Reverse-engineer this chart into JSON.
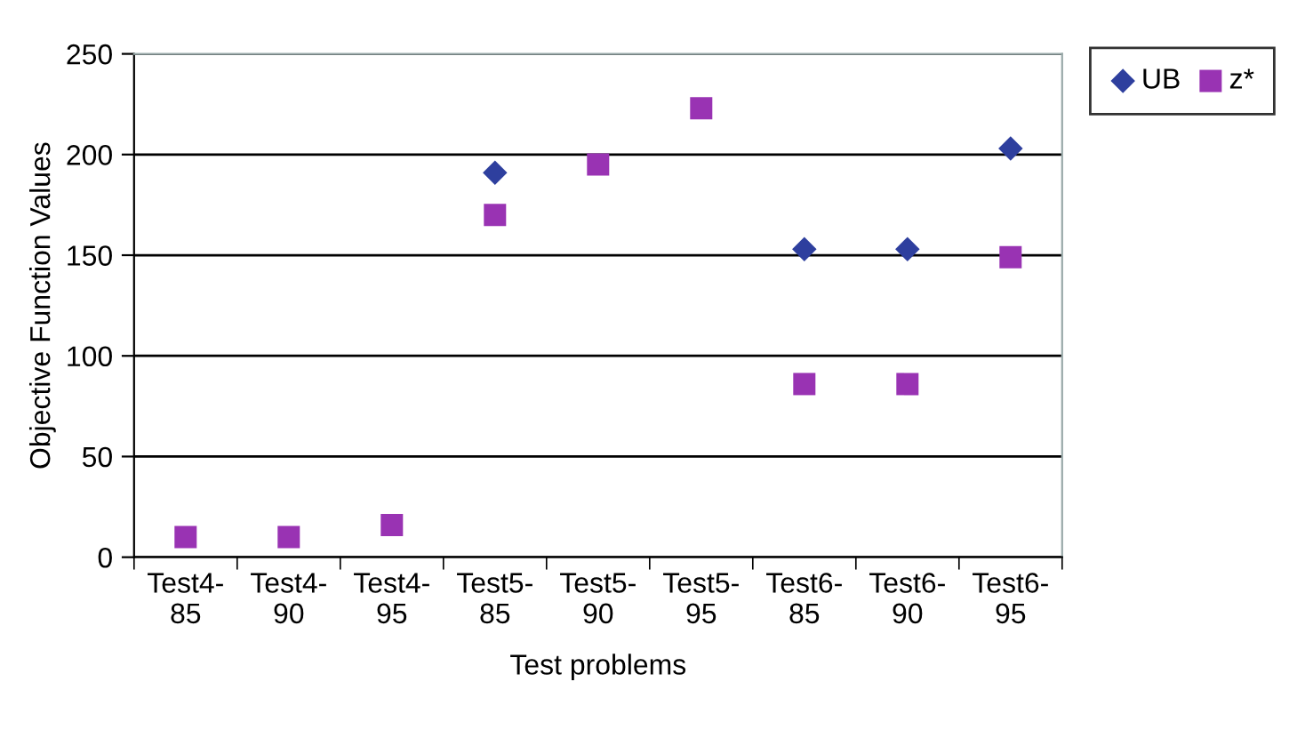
{
  "chart_data": {
    "type": "scatter",
    "xlabel": "Test problems",
    "ylabel": "Objective Function Values",
    "categories": [
      "Test4-\n85",
      "Test4-\n90",
      "Test4-\n95",
      "Test5-\n85",
      "Test5-\n90",
      "Test5-\n95",
      "Test6-\n85",
      "Test6-\n90",
      "Test6-\n95"
    ],
    "series": [
      {
        "name": "UB",
        "color": "#2e3f9e",
        "marker": "diamond",
        "values": [
          null,
          null,
          null,
          191,
          null,
          null,
          153,
          153,
          203
        ]
      },
      {
        "name": "z*",
        "color": "#9933b3",
        "marker": "square",
        "values": [
          10,
          10,
          16,
          170,
          195,
          223,
          86,
          86,
          149
        ]
      }
    ],
    "ylim": [
      0,
      250
    ],
    "yticks": [
      0,
      50,
      100,
      150,
      200,
      250
    ],
    "grid": "y",
    "legend": "top right"
  }
}
